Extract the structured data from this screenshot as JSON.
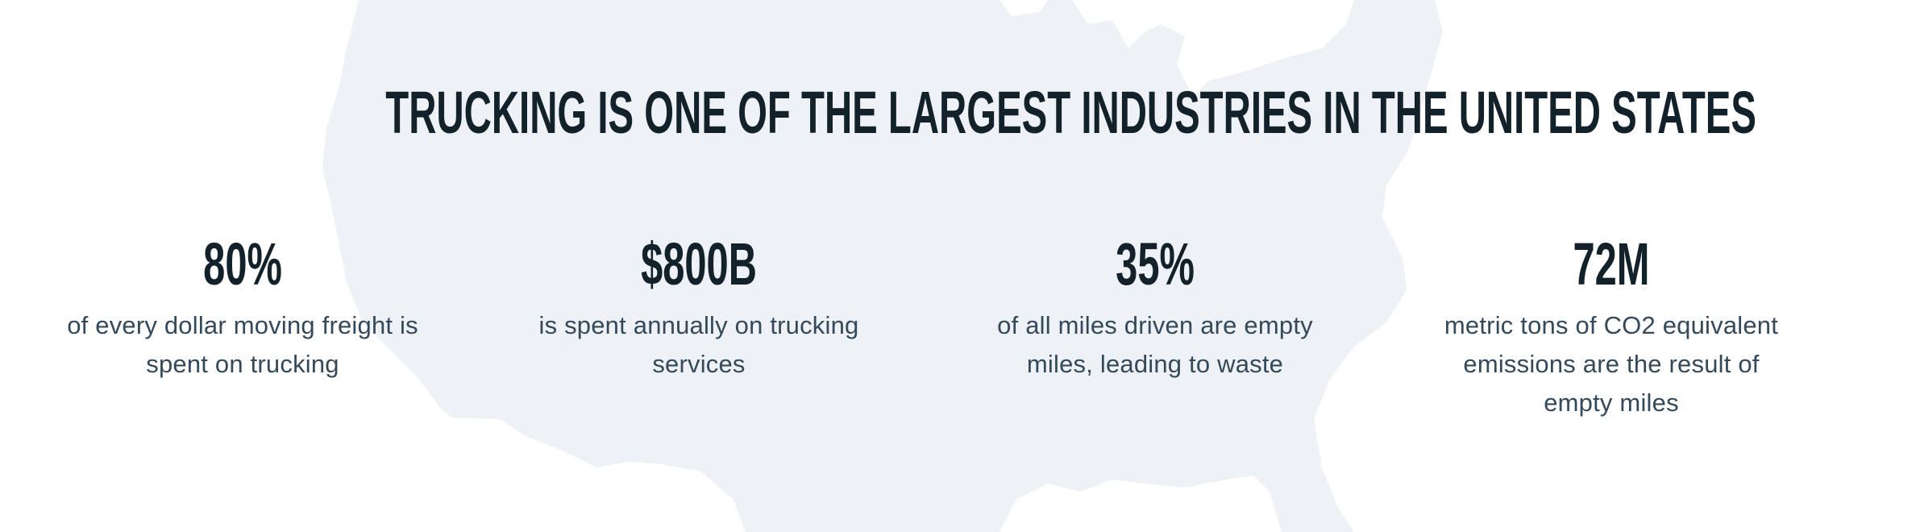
{
  "colors": {
    "heading": "#13212a",
    "body": "#34495a",
    "map": "#eef1f6",
    "background": "#ffffff"
  },
  "background_image": "united-states-map-silhouette",
  "headline": "TRUCKING IS ONE OF THE LARGEST INDUSTRIES IN THE UNITED STATES",
  "stats": [
    {
      "value": "80%",
      "lines": [
        "of every dollar moving freight is",
        "spent on trucking"
      ]
    },
    {
      "value": "$800B",
      "lines": [
        "is spent annually on trucking",
        "services"
      ]
    },
    {
      "value": "35%",
      "lines": [
        "of all miles driven are empty",
        "miles, leading to waste"
      ]
    },
    {
      "value": "72M",
      "lines": [
        "metric tons of CO2 equivalent",
        "emissions are the result of",
        "empty miles"
      ]
    }
  ]
}
